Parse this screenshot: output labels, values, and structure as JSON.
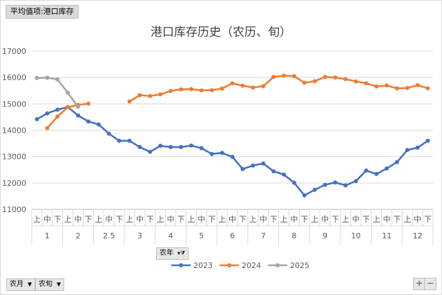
{
  "pivot_value_label": "平均值项:港口库存",
  "axis_field_button": "农年",
  "filter_buttons": [
    "农月",
    "农旬"
  ],
  "zoom_buttons": [
    "+",
    "−"
  ],
  "colors": {
    "2023": "#4472C4",
    "2024": "#ED7D31",
    "2025": "#A5A5A5"
  },
  "chart_data": {
    "type": "line",
    "title": "港口库存历史（农历、旬）",
    "ylim": [
      11000,
      17000
    ],
    "yticks": [
      11000,
      12000,
      13000,
      14000,
      15000,
      16000,
      17000
    ],
    "xticks_inner": [
      "上",
      "中",
      "下",
      "上",
      "中",
      "下",
      "上",
      "中",
      "下",
      "上",
      "中",
      "下",
      "上",
      "中",
      "下",
      "上",
      "中",
      "下",
      "上",
      "中",
      "下",
      "上",
      "中",
      "下",
      "上",
      "中",
      "下",
      "上",
      "中",
      "下",
      "上",
      "中",
      "下",
      "上",
      "中",
      "下",
      "上",
      "中",
      "下"
    ],
    "xticks_outer": [
      "1",
      "2",
      "2.5",
      "3",
      "4",
      "5",
      "6",
      "7",
      "8",
      "9",
      "10",
      "11",
      "12"
    ],
    "series": [
      {
        "name": "2023",
        "values": [
          14420,
          14640,
          14780,
          14880,
          14560,
          14330,
          14220,
          13870,
          13600,
          13600,
          13360,
          13180,
          13410,
          13360,
          13360,
          13420,
          13320,
          13100,
          13140,
          12990,
          12530,
          12660,
          12740,
          12440,
          12320,
          12010,
          11530,
          11740,
          11930,
          12020,
          11910,
          12070,
          12470,
          12340,
          12550,
          12790,
          13250,
          13340,
          13600
        ]
      },
      {
        "name": "2024",
        "values": [
          null,
          14080,
          14520,
          14870,
          14960,
          15010,
          null,
          null,
          null,
          15090,
          15330,
          15300,
          15360,
          15490,
          15550,
          15560,
          15510,
          15520,
          15580,
          15780,
          15690,
          15620,
          15670,
          16020,
          16070,
          16050,
          15800,
          15860,
          16020,
          16000,
          15940,
          15850,
          15780,
          15660,
          15700,
          15590,
          15600,
          15710,
          15590
        ]
      },
      {
        "name": "2025",
        "values": [
          15980,
          15990,
          15930,
          15420,
          14890,
          null,
          null,
          null,
          null,
          null,
          null,
          null,
          null,
          null,
          null,
          null,
          null,
          null,
          null,
          null,
          null,
          null,
          null,
          null,
          null,
          null,
          null,
          null,
          null,
          null,
          null,
          null,
          null,
          null,
          null,
          null,
          null,
          null,
          null
        ]
      }
    ]
  }
}
